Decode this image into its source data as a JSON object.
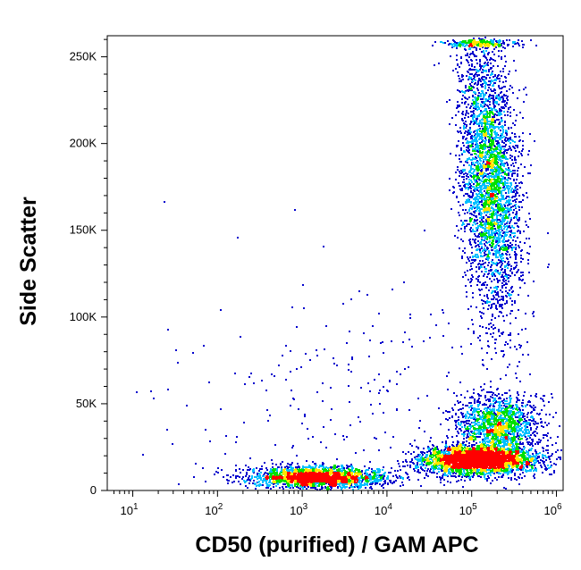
{
  "chart_data": {
    "type": "scatter",
    "title": "",
    "xlabel": "CD50 (purified) / GAM APC",
    "ylabel": "Side Scatter",
    "x_scale": "log",
    "xlim": [
      5,
      1200000
    ],
    "ylim": [
      0,
      262144
    ],
    "x_ticks": [
      {
        "value": 10,
        "base": "10",
        "exp": "1"
      },
      {
        "value": 100,
        "base": "10",
        "exp": "2"
      },
      {
        "value": 1000,
        "base": "10",
        "exp": "3"
      },
      {
        "value": 10000,
        "base": "10",
        "exp": "4"
      },
      {
        "value": 100000,
        "base": "10",
        "exp": "5"
      },
      {
        "value": 1000000,
        "base": "10",
        "exp": "6"
      }
    ],
    "y_ticks": [
      {
        "value": 0,
        "label": "0"
      },
      {
        "value": 50000,
        "label": "50K"
      },
      {
        "value": 100000,
        "label": "100K"
      },
      {
        "value": 150000,
        "label": "150K"
      },
      {
        "value": 200000,
        "label": "200K"
      },
      {
        "value": 250000,
        "label": "250K"
      }
    ],
    "grid": false,
    "legend": "none",
    "density_colors": [
      "#0000cd",
      "#00bfff",
      "#00e000",
      "#ffe600",
      "#ff0000"
    ],
    "populations": [
      {
        "name_shown": false,
        "x_center": 1500,
        "y_center": 8000,
        "count": 2200
      },
      {
        "name_shown": false,
        "x_center": 120000,
        "y_center": 18000,
        "count": 3200
      },
      {
        "name_shown": false,
        "x_center": 200000,
        "y_center": 38000,
        "count": 1500
      },
      {
        "name_shown": false,
        "x_center": 160000,
        "y_center": 180000,
        "count": 3600
      }
    ]
  }
}
